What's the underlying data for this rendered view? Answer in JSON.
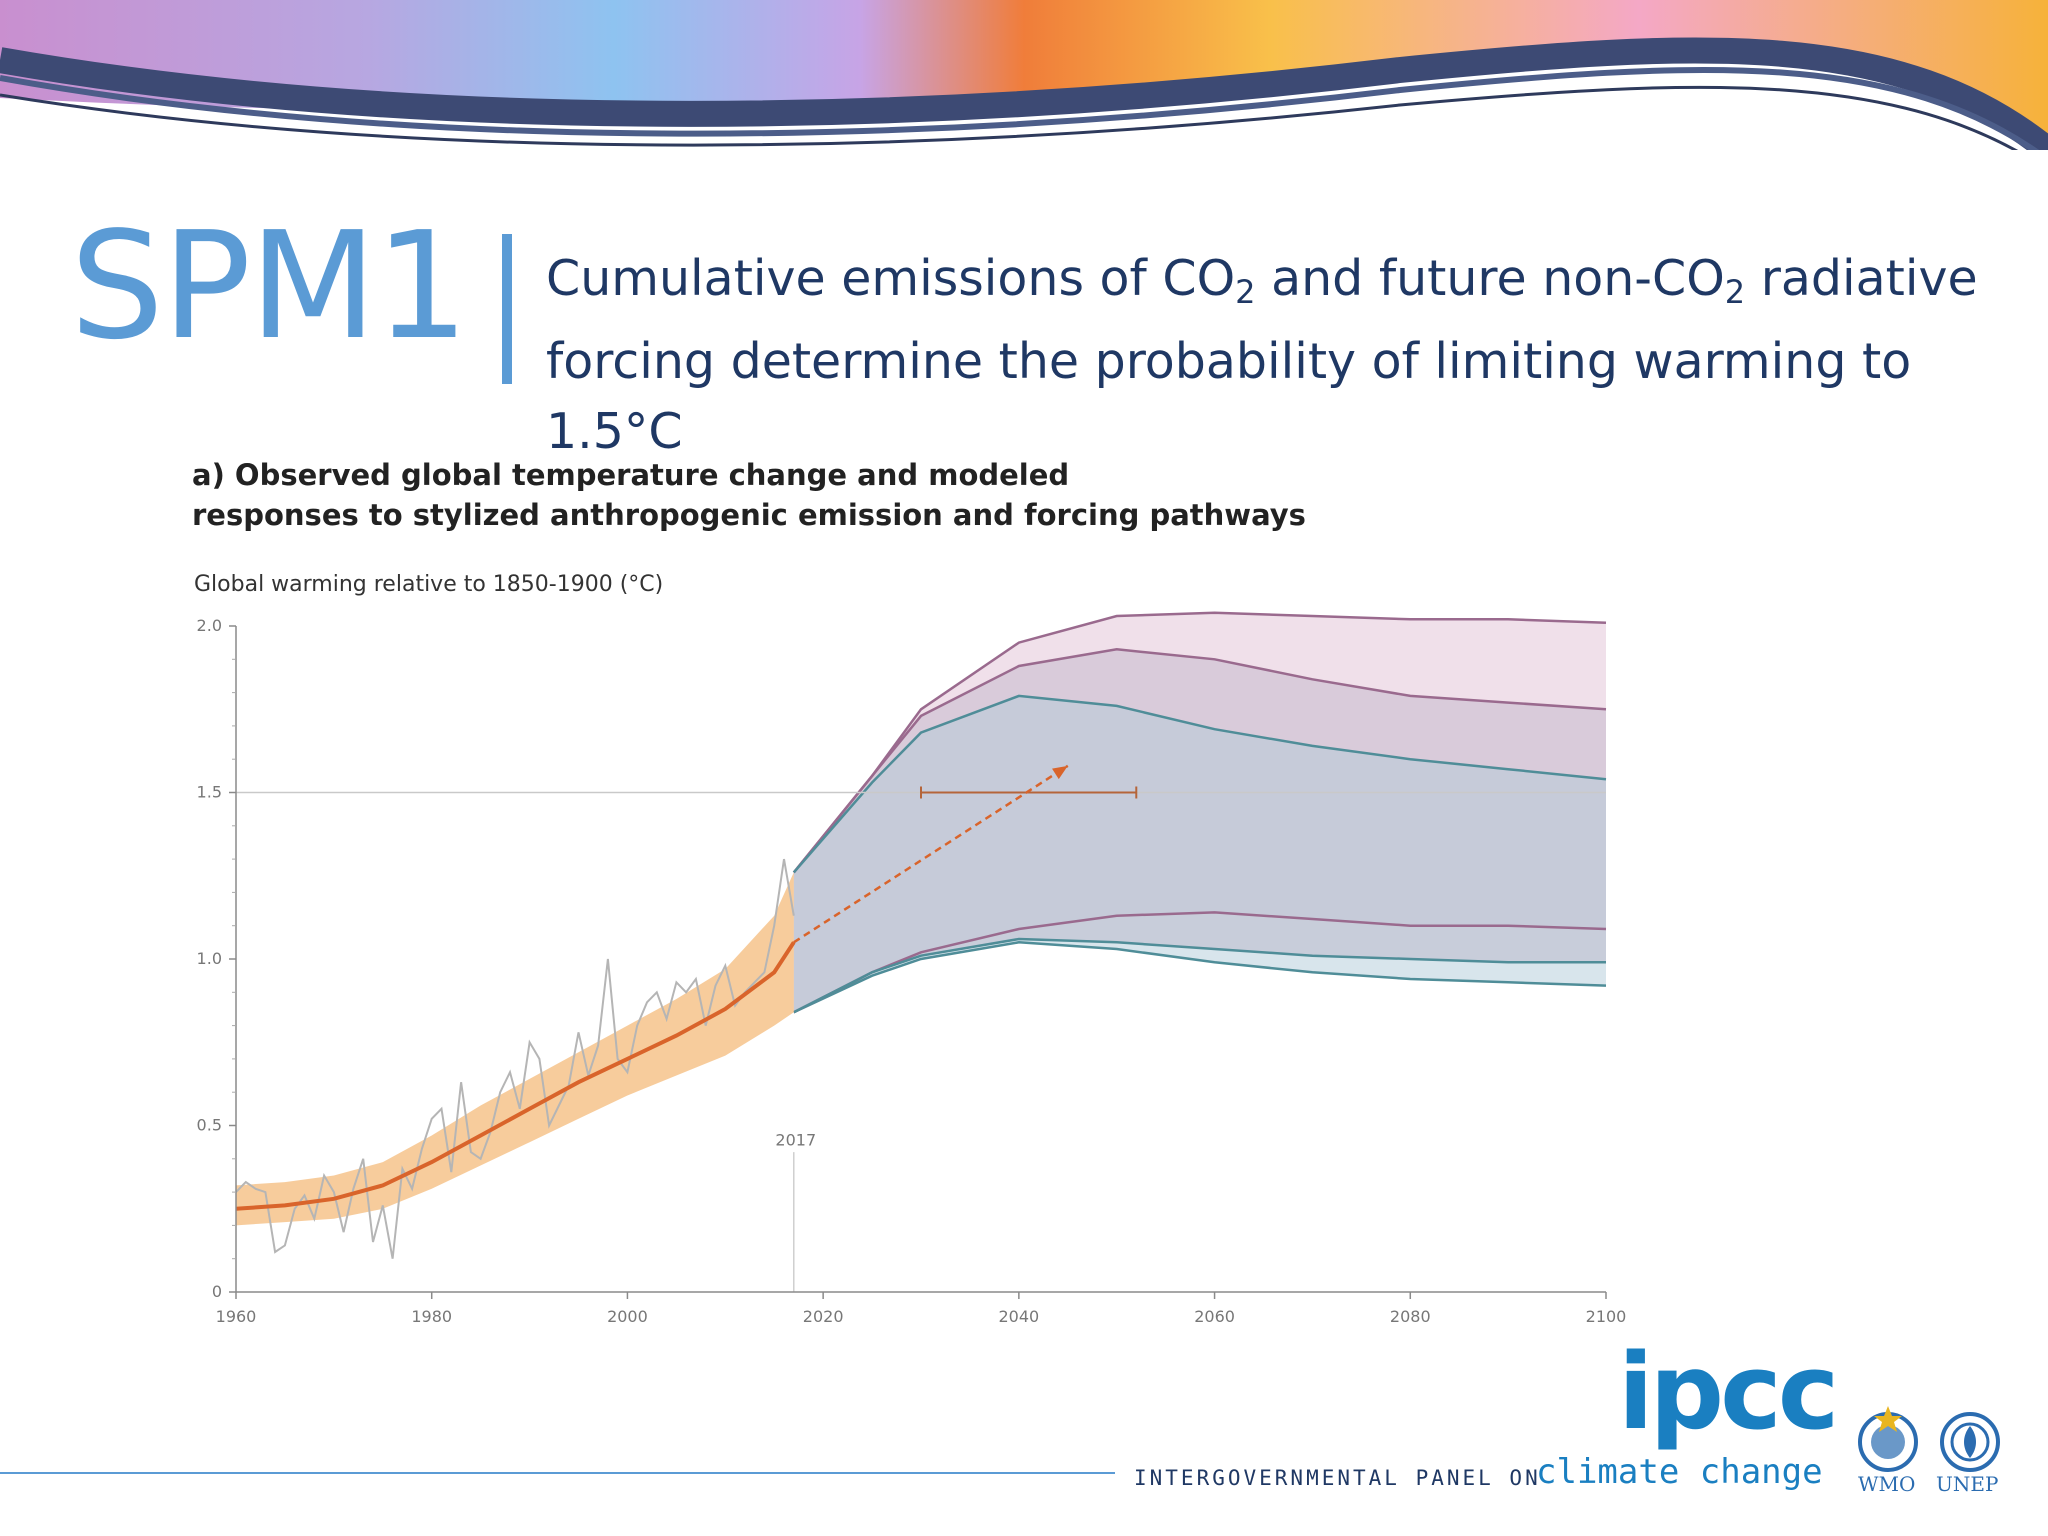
{
  "slide": {
    "label": "SPM1",
    "headline": {
      "line1_a": "Cumulative emissions of CO",
      "line1_sub1": "2",
      "line1_b": " and future non-CO",
      "line1_sub2": "2",
      "line1_c": " radiative",
      "line2": "forcing determine the probability of limiting warming to 1.5°C"
    }
  },
  "footer": {
    "ipcc": "ipcc",
    "panel": "INTERGOVERNMENTAL PANEL ON",
    "climate": "climate change",
    "wmo": "WMO",
    "unep": "UNEP"
  },
  "colors": {
    "accent": "#5b9bd5",
    "headline": "#1f3864",
    "observed_band": "#f6c38b",
    "observed_line": "#d9642b",
    "observed_monthly": "#b5b5b5",
    "projection_fill_outer": "#eedde8",
    "projection_fill_mid": "#d6c9d8",
    "projection_fill_inner": "#c3cbd8",
    "projection_fill_lower": "#d5e6ec",
    "purple_line": "#9a6a8e",
    "teal_line": "#4f8d98"
  },
  "chart_data": {
    "type": "line",
    "title_line1": "a) Observed global temperature change and modeled",
    "title_line2": "responses to stylized anthropogenic emission and forcing pathways",
    "ylabel": "Global warming relative to 1850-1900 (°C)",
    "xlim": [
      1960,
      2100
    ],
    "ylim": [
      0,
      2.0
    ],
    "xticks": [
      "1960",
      "1980",
      "2000",
      "2020",
      "2040",
      "2060",
      "2080",
      "2100"
    ],
    "yticks": [
      "0",
      "0.5",
      "1.0",
      "1.5",
      "2.0"
    ],
    "reference_line_y": 1.5,
    "annotation_year": "2017",
    "observed_smoothed": {
      "x": [
        1960,
        1965,
        1970,
        1975,
        1980,
        1985,
        1990,
        1995,
        2000,
        2005,
        2010,
        2015,
        2017
      ],
      "y": [
        0.25,
        0.26,
        0.28,
        0.32,
        0.39,
        0.47,
        0.55,
        0.63,
        0.7,
        0.77,
        0.85,
        0.96,
        1.05
      ]
    },
    "observed_band": {
      "x": [
        1960,
        1965,
        1970,
        1975,
        1980,
        1985,
        1990,
        1995,
        2000,
        2005,
        2010,
        2015,
        2017
      ],
      "lower": [
        0.2,
        0.21,
        0.22,
        0.25,
        0.31,
        0.38,
        0.45,
        0.52,
        0.59,
        0.65,
        0.71,
        0.8,
        0.84
      ],
      "upper": [
        0.32,
        0.33,
        0.35,
        0.39,
        0.47,
        0.56,
        0.64,
        0.72,
        0.8,
        0.88,
        0.97,
        1.13,
        1.26
      ]
    },
    "observed_monthly": {
      "x": [
        1960,
        1961,
        1962,
        1963,
        1964,
        1965,
        1966,
        1967,
        1968,
        1969,
        1970,
        1971,
        1972,
        1973,
        1974,
        1975,
        1976,
        1977,
        1978,
        1979,
        1980,
        1981,
        1982,
        1983,
        1984,
        1985,
        1986,
        1987,
        1988,
        1989,
        1990,
        1991,
        1992,
        1993,
        1994,
        1995,
        1996,
        1997,
        1998,
        1999,
        2000,
        2001,
        2002,
        2003,
        2004,
        2005,
        2006,
        2007,
        2008,
        2009,
        2010,
        2011,
        2012,
        2013,
        2014,
        2015,
        2016,
        2017
      ],
      "y": [
        0.3,
        0.33,
        0.31,
        0.3,
        0.12,
        0.14,
        0.25,
        0.29,
        0.22,
        0.35,
        0.3,
        0.18,
        0.31,
        0.4,
        0.15,
        0.26,
        0.1,
        0.37,
        0.31,
        0.43,
        0.52,
        0.55,
        0.36,
        0.63,
        0.42,
        0.4,
        0.48,
        0.6,
        0.66,
        0.55,
        0.75,
        0.7,
        0.5,
        0.56,
        0.62,
        0.78,
        0.65,
        0.74,
        1.0,
        0.7,
        0.66,
        0.8,
        0.87,
        0.9,
        0.82,
        0.93,
        0.9,
        0.94,
        0.8,
        0.92,
        0.98,
        0.86,
        0.9,
        0.93,
        0.96,
        1.1,
        1.3,
        1.13
      ]
    },
    "projection_bands": [
      {
        "x": [
          2017,
          2025,
          2030,
          2040,
          2050,
          2060,
          2070,
          2080,
          2090,
          2100
        ],
        "lower": [
          0.84,
          0.95,
          1.0,
          1.05,
          1.03,
          0.99,
          0.96,
          0.94,
          0.93,
          0.92
        ],
        "upper": [
          1.26,
          1.55,
          1.75,
          1.95,
          2.03,
          2.04,
          2.03,
          2.02,
          2.02,
          2.01
        ],
        "line_lower_color": "teal",
        "line_upper_color": "purple"
      },
      {
        "x": [
          2017,
          2025,
          2030,
          2040,
          2050,
          2060,
          2070,
          2080,
          2090,
          2100
        ],
        "lower": [
          0.84,
          0.96,
          1.02,
          1.09,
          1.13,
          1.14,
          1.12,
          1.1,
          1.1,
          1.09
        ],
        "upper": [
          1.26,
          1.55,
          1.73,
          1.88,
          1.93,
          1.9,
          1.84,
          1.79,
          1.77,
          1.75
        ],
        "line_lower_color": "purple",
        "line_upper_color": "purple"
      },
      {
        "x": [
          2017,
          2025,
          2030,
          2040,
          2050,
          2060,
          2070,
          2080,
          2090,
          2100
        ],
        "lower": [
          0.84,
          0.96,
          1.01,
          1.06,
          1.05,
          1.03,
          1.01,
          1.0,
          0.99,
          0.99
        ],
        "upper": [
          1.26,
          1.53,
          1.68,
          1.79,
          1.76,
          1.69,
          1.64,
          1.6,
          1.57,
          1.54
        ],
        "line_lower_color": "teal",
        "line_upper_color": "teal"
      }
    ],
    "trend_arrow": {
      "x": [
        2017,
        2045
      ],
      "y": [
        1.05,
        1.58
      ]
    },
    "range_bar": {
      "x": [
        2030,
        2052
      ],
      "y": 1.5
    },
    "grid": false
  }
}
